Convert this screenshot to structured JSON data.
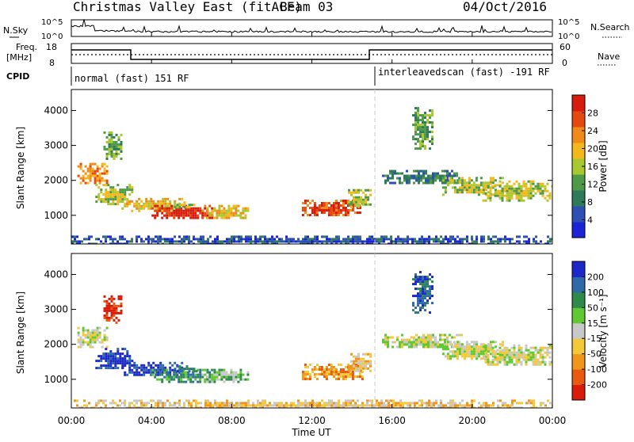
{
  "header": {
    "title": "Christmas Valley East (fitACF)",
    "beam": "Beam 03",
    "date": "04/Oct/2016"
  },
  "top_panels": {
    "nsky_label": "N.Sky",
    "nsky_ticks": [
      "10^5",
      "10^0"
    ],
    "nsearch_label": "N.Search",
    "nsearch_ticks": [
      "10^5",
      "10^0"
    ],
    "freq_label": "Freq.",
    "freq_unit": "[MHz]",
    "freq_ticks": [
      "18",
      "8"
    ],
    "nave_label": "Nave",
    "nave_ticks": [
      "60",
      "0"
    ],
    "cpid_label": "CPID",
    "modes": [
      {
        "name": "normal (fast) 151 RF",
        "start_hour": 0
      },
      {
        "name": "interleavedscan (fast) -191 RF",
        "start_hour": 15.2
      }
    ]
  },
  "colors": {
    "power": [
      "#1c24d8",
      "#2e4fb4",
      "#2f7a5a",
      "#4f9a48",
      "#a8c830",
      "#f3b81c",
      "#f08a1a",
      "#e44a10",
      "#d81c0c"
    ],
    "velocity": [
      "#d81c0c",
      "#e85a10",
      "#f0961a",
      "#f3c83a",
      "#c8c8c8",
      "#5fc832",
      "#2e8a4a",
      "#2f6aa8",
      "#1c28c8"
    ]
  },
  "chart_data": {
    "type": "heatmap",
    "xlabel": "Time UT",
    "x_ticks": [
      "00:00",
      "04:00",
      "08:00",
      "12:00",
      "16:00",
      "20:00",
      "00:00"
    ],
    "x_range_hours": [
      0,
      24
    ],
    "ylabel": "Slant Range [km]",
    "y_ticks": [
      1000,
      2000,
      3000,
      4000
    ],
    "y_range_km": [
      180,
      4600
    ],
    "power": {
      "colorbar_label": "Power [dB]",
      "ticks": [
        "4",
        "8",
        "12",
        "16",
        "20",
        "24",
        "28"
      ],
      "range": [
        0,
        30
      ]
    },
    "velocity": {
      "colorbar_label": "Velocity [m s⁻¹]",
      "ticks": [
        "-200",
        "-100",
        "-50",
        "-15",
        "15",
        "50",
        "100",
        "200"
      ]
    },
    "echo_regions": [
      {
        "t0": 0.3,
        "t1": 1.8,
        "r0": 1950,
        "r1": 2500,
        "power_level": 6,
        "velocity_level": 4
      },
      {
        "t0": 1.2,
        "t1": 3.0,
        "r0": 1300,
        "r1": 1900,
        "power_level": 4,
        "velocity_level": 8
      },
      {
        "t0": 1.6,
        "t1": 2.5,
        "r0": 2600,
        "r1": 3400,
        "power_level": 3,
        "velocity_level": 0
      },
      {
        "t0": 2.5,
        "t1": 5.5,
        "r0": 1100,
        "r1": 1500,
        "power_level": 5,
        "velocity_level": 8
      },
      {
        "t0": 4.0,
        "t1": 7.0,
        "r0": 900,
        "r1": 1300,
        "power_level": 8,
        "velocity_level": 6
      },
      {
        "t0": 6.5,
        "t1": 8.8,
        "r0": 950,
        "r1": 1300,
        "power_level": 5,
        "velocity_level": 5
      },
      {
        "t0": 5.0,
        "t1": 6.3,
        "r0": 1200,
        "r1": 1400,
        "power_level": 4,
        "velocity_level": 7
      },
      {
        "t0": 11.5,
        "t1": 14.5,
        "r0": 1000,
        "r1": 1450,
        "power_level": 7,
        "velocity_level": 2
      },
      {
        "t0": 13.8,
        "t1": 14.9,
        "r0": 1250,
        "r1": 1750,
        "power_level": 4,
        "velocity_level": 3
      },
      {
        "t0": 15.5,
        "t1": 19.5,
        "r0": 1900,
        "r1": 2300,
        "power_level": 2,
        "velocity_level": 4
      },
      {
        "t0": 18.5,
        "t1": 21.5,
        "r0": 1600,
        "r1": 2100,
        "power_level": 4,
        "velocity_level": 4
      },
      {
        "t0": 20.5,
        "t1": 24.0,
        "r0": 1400,
        "r1": 2000,
        "power_level": 4,
        "velocity_level": 4
      },
      {
        "t0": 17.0,
        "t1": 18.0,
        "r0": 2900,
        "r1": 4100,
        "power_level": 3,
        "velocity_level": 7
      },
      {
        "t0": 0.0,
        "t1": 24.0,
        "r0": 180,
        "r1": 420,
        "power_level": 1,
        "velocity_level": 3
      }
    ]
  }
}
